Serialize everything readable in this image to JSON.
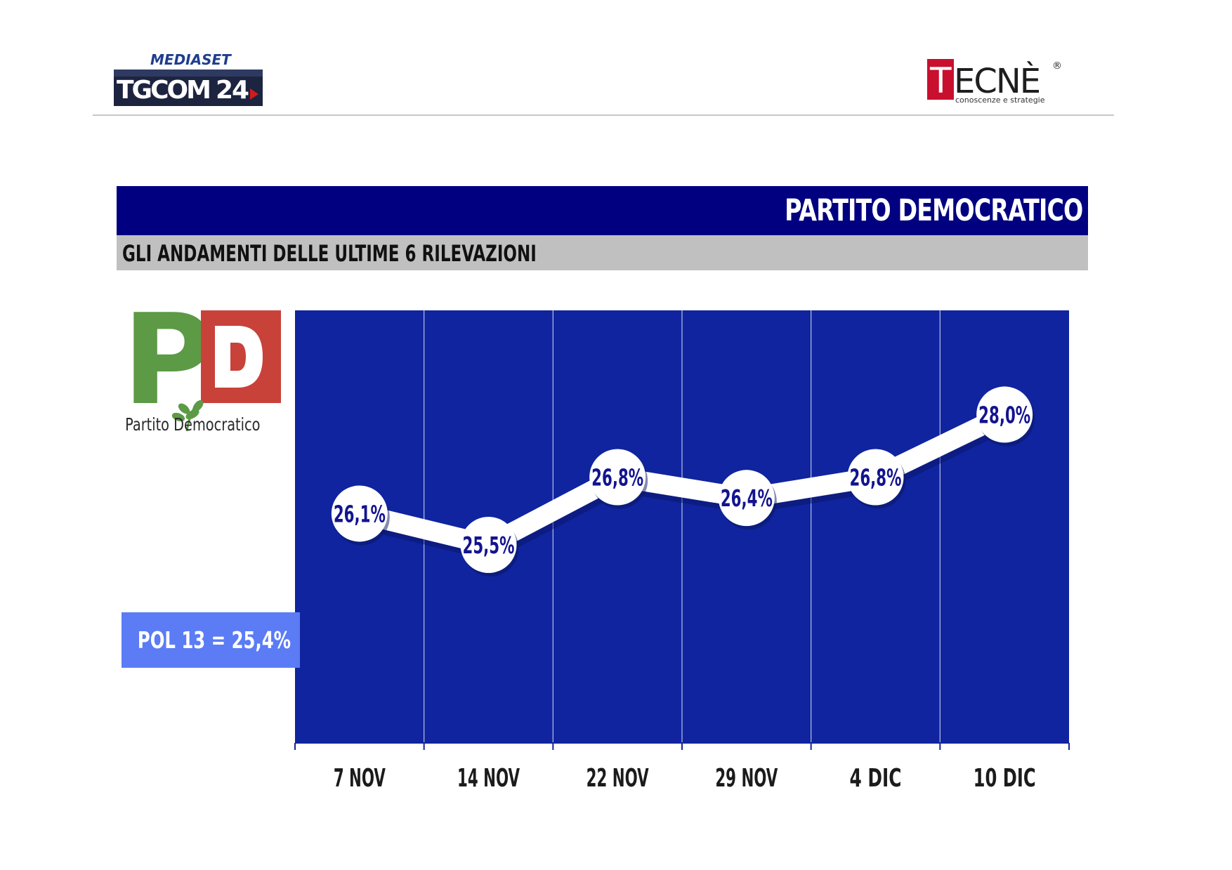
{
  "header": {
    "tgcom_brand_top": "MEDIASET",
    "tgcom_brand_main": "TGCOM",
    "tgcom_brand_num": "24",
    "tecne_brand_first": "T",
    "tecne_brand_rest": "ECNÈ",
    "tecne_registered": "®",
    "tecne_tagline": "conoscenze e strategie"
  },
  "title": "PARTITO DEMOCRATICO",
  "subtitle": "GLI ANDAMENTI DELLE ULTIME 6 RILEVAZIONI",
  "party_logo": {
    "letters": "PD",
    "caption": "Partito Democratico",
    "green": "#5c9a46",
    "red": "#c8423a"
  },
  "reference_box": {
    "label": "POL 13 = 25,4%",
    "color": "#5b7cf5"
  },
  "colors": {
    "title_bar": "#010080",
    "subtitle_bar": "#c0c0c0",
    "plot_background": "#0f249e",
    "line": "#ffffff",
    "label_text": "#13148f"
  },
  "chart_data": {
    "type": "line",
    "categories": [
      "7 NOV",
      "14 NOV",
      "22 NOV",
      "29 NOV",
      "4 DIC",
      "10 DIC"
    ],
    "series": [
      {
        "values": [
          26.1,
          25.5,
          26.8,
          26.4,
          26.8,
          28.0
        ],
        "labels": [
          "26,1%",
          "25,5%",
          "26,8%",
          "26,4%",
          "26,8%",
          "28,0%"
        ]
      }
    ],
    "reference_line": {
      "label": "POL 13 = 25,4%",
      "value": 25.4
    },
    "ylim": [
      21.7,
      30.0
    ],
    "grid": "vertical",
    "legend": "none"
  }
}
